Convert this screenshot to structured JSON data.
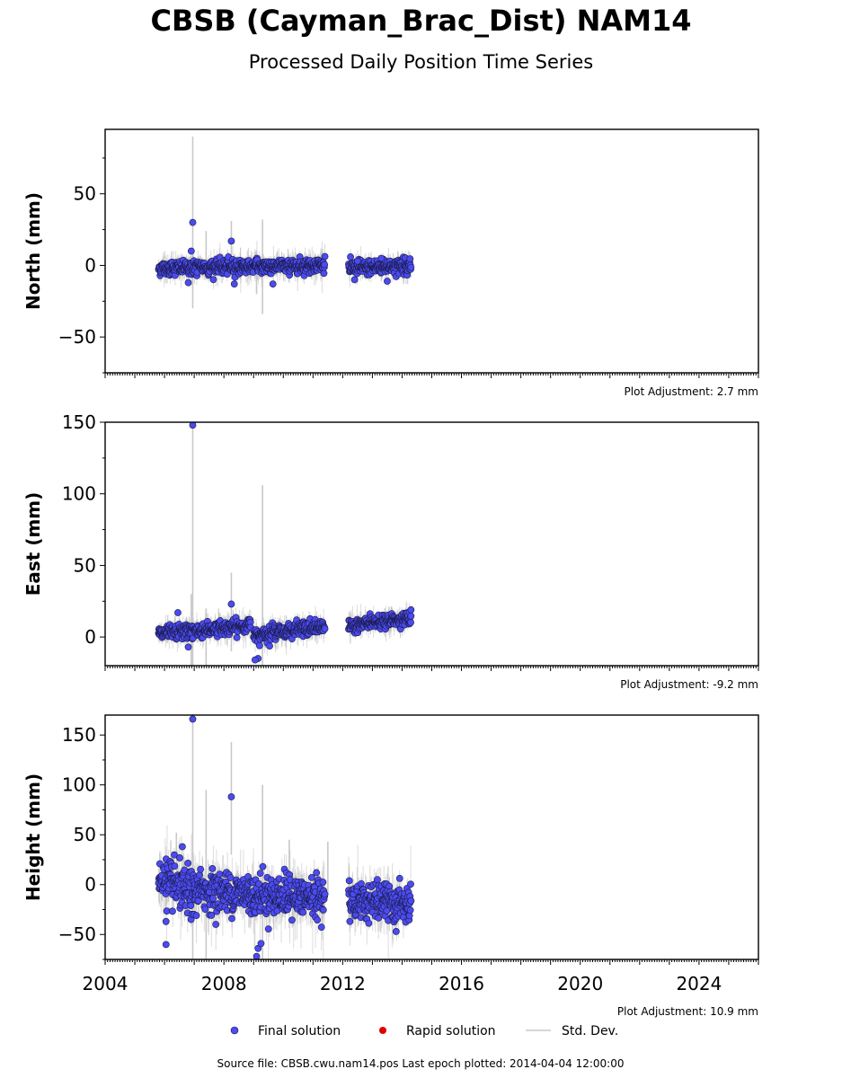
{
  "title": "CBSB (Cayman_Brac_Dist) NAM14",
  "subtitle": "Processed Daily Position Time Series",
  "colors": {
    "final": "#4b4bef",
    "final_edge": "#1a1a4a",
    "rapid": "#e00000",
    "stddev": "#c8c8c8"
  },
  "legend": {
    "final": "Final solution",
    "rapid": "Rapid solution",
    "stddev": "Std. Dev."
  },
  "footer": "Source file: CBSB.cwu.nam14.pos  Last epoch plotted: 2014-04-04 12:00:00",
  "chart_data": [
    {
      "type": "scatter",
      "ylabel": "North (mm)",
      "xlim": [
        2004.0,
        2026.0
      ],
      "ylim": [
        -75,
        95
      ],
      "yticks": [
        -50,
        0,
        50
      ],
      "adjustment": "Plot Adjustment: 2.7 mm",
      "segments": [
        [
          2005.8,
          2011.4,
          -2,
          0.3,
          2.5
        ],
        [
          2012.2,
          2014.3,
          -2,
          0,
          2.5
        ]
      ],
      "outliers": [
        [
          2006.95,
          30
        ],
        [
          2008.25,
          17
        ],
        [
          2006.9,
          10
        ],
        [
          2008.35,
          -13
        ],
        [
          2009.65,
          -13
        ],
        [
          2013.5,
          -11
        ],
        [
          2012.4,
          -10
        ],
        [
          2006.8,
          -12
        ],
        [
          2012.5,
          3
        ],
        [
          2013.3,
          5
        ]
      ],
      "error_spikes": [
        [
          2006.95,
          -30,
          90
        ],
        [
          2007.4,
          -10,
          24
        ],
        [
          2008.25,
          -10,
          31
        ],
        [
          2009.3,
          -34,
          32
        ],
        [
          2009.1,
          -20,
          10
        ]
      ]
    },
    {
      "type": "scatter",
      "ylabel": "East (mm)",
      "xlim": [
        2004.0,
        2026.0
      ],
      "ylim": [
        -20,
        150
      ],
      "yticks": [
        0,
        50,
        100,
        150
      ],
      "adjustment": "Plot Adjustment: -9.2 mm",
      "segments": [
        [
          2005.8,
          2008.9,
          2,
          8,
          2.5
        ],
        [
          2009.0,
          2011.4,
          2,
          7,
          2.5
        ],
        [
          2012.2,
          2014.3,
          8,
          13,
          2.2
        ]
      ],
      "outliers": [
        [
          2006.95,
          148
        ],
        [
          2008.25,
          23
        ],
        [
          2009.15,
          -15
        ],
        [
          2009.05,
          -16
        ],
        [
          2009.2,
          -6
        ],
        [
          2006.8,
          -7
        ],
        [
          2006.45,
          17
        ],
        [
          2014.3,
          19
        ]
      ],
      "error_spikes": [
        [
          2006.95,
          -20,
          150
        ],
        [
          2006.9,
          -20,
          30
        ],
        [
          2007.4,
          -20,
          20
        ],
        [
          2008.25,
          -10,
          45
        ],
        [
          2009.3,
          -20,
          106
        ]
      ]
    },
    {
      "type": "scatter",
      "ylabel": "Height (mm)",
      "xlim": [
        2004.0,
        2026.0
      ],
      "ylim": [
        -75,
        170
      ],
      "yticks": [
        -50,
        0,
        50,
        100,
        150
      ],
      "xticks": [
        2004,
        2008,
        2012,
        2016,
        2020,
        2024
      ],
      "adjustment": "Plot Adjustment: 10.9 mm",
      "segments": [
        [
          2005.8,
          2007.0,
          5,
          -10,
          11
        ],
        [
          2007.0,
          2011.4,
          -5,
          -15,
          10
        ],
        [
          2012.2,
          2014.3,
          -15,
          -20,
          9
        ]
      ],
      "outliers": [
        [
          2006.95,
          166
        ],
        [
          2008.25,
          88
        ],
        [
          2006.05,
          -60
        ],
        [
          2006.05,
          -37
        ],
        [
          2009.15,
          -64
        ],
        [
          2009.1,
          -72
        ],
        [
          2009.25,
          -59
        ],
        [
          2013.8,
          -47
        ],
        [
          2006.6,
          38
        ]
      ],
      "error_spikes": [
        [
          2006.95,
          -75,
          170
        ],
        [
          2007.4,
          -75,
          95
        ],
        [
          2008.25,
          30,
          143
        ],
        [
          2009.3,
          -75,
          100
        ],
        [
          2006.4,
          -10,
          52
        ],
        [
          2011.5,
          -10,
          43
        ],
        [
          2010.2,
          -10,
          45
        ]
      ]
    }
  ]
}
